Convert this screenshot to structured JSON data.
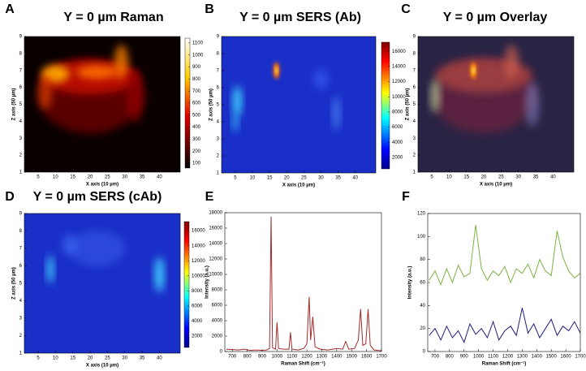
{
  "chart_data": [
    {
      "type": "heatmap",
      "panel": "A",
      "title": "Y = 0 µm Raman",
      "xlabel": "X axis (10 µm)",
      "ylabel": "Z axis (50 µm)",
      "xlim": [
        1,
        46
      ],
      "ylim": [
        1,
        9
      ],
      "xticks": [
        5,
        10,
        15,
        20,
        25,
        30,
        35,
        40
      ],
      "yticks": [
        1,
        2,
        3,
        4,
        5,
        6,
        7,
        8,
        9
      ],
      "colormap": "hot",
      "clim": [
        60,
        1140
      ],
      "cbar_ticks": [
        100,
        200,
        300,
        400,
        500,
        600,
        700,
        800,
        900,
        1000,
        1100
      ]
    },
    {
      "type": "heatmap",
      "panel": "B",
      "title": "Y = 0 µm SERS (Ab)",
      "xlabel": "X axis (10 µm)",
      "ylabel": "Z axis (50 µm)",
      "xlim": [
        1,
        46
      ],
      "ylim": [
        1,
        9
      ],
      "xticks": [
        5,
        10,
        15,
        20,
        25,
        30,
        35,
        40
      ],
      "yticks": [
        1,
        2,
        3,
        4,
        5,
        6,
        7,
        8,
        9
      ],
      "colormap": "jet",
      "clim": [
        500,
        17200
      ],
      "cbar_ticks": [
        2000,
        4000,
        6000,
        8000,
        10000,
        12000,
        14000,
        16000
      ]
    },
    {
      "type": "heatmap",
      "panel": "C",
      "title": "Y = 0 µm Overlay",
      "xlabel": "X axis (10 µm)",
      "ylabel": "Z axis (50 µm)",
      "xlim": [
        1,
        46
      ],
      "ylim": [
        1,
        9
      ],
      "xticks": [
        5,
        10,
        15,
        20,
        25,
        30,
        35,
        40
      ],
      "yticks": [
        1,
        2,
        3,
        4,
        5,
        6,
        7,
        8,
        9
      ],
      "colormap": "overlay"
    },
    {
      "type": "heatmap",
      "panel": "D",
      "title": "Y = 0 µm SERS (cAb)",
      "xlabel": "X axis (10 µm)",
      "ylabel": "Z axis (50 µm)",
      "xlim": [
        1,
        46
      ],
      "ylim": [
        1,
        9
      ],
      "xticks": [
        5,
        10,
        15,
        20,
        25,
        30,
        35,
        40
      ],
      "yticks": [
        1,
        2,
        3,
        4,
        5,
        6,
        7,
        8,
        9
      ],
      "colormap": "jet",
      "clim": [
        500,
        17200
      ],
      "cbar_ticks": [
        2000,
        4000,
        6000,
        8000,
        10000,
        12000,
        14000,
        16000
      ]
    },
    {
      "type": "line",
      "panel": "E",
      "xlabel": "Raman Shift (cm⁻¹)",
      "ylabel": "Intensity (a.u.)",
      "xlim": [
        650,
        1700
      ],
      "ylim": [
        0,
        18000
      ],
      "xticks": [
        700,
        800,
        900,
        1000,
        1100,
        1200,
        1300,
        1400,
        1500,
        1600,
        1700
      ],
      "yticks": [
        0,
        2000,
        4000,
        6000,
        8000,
        10000,
        12000,
        14000,
        16000,
        18000
      ],
      "x": [
        660,
        700,
        740,
        780,
        820,
        860,
        900,
        930,
        950,
        960,
        970,
        990,
        1000,
        1010,
        1040,
        1080,
        1090,
        1100,
        1140,
        1180,
        1200,
        1215,
        1225,
        1240,
        1255,
        1290,
        1340,
        1400,
        1440,
        1460,
        1480,
        1520,
        1545,
        1560,
        1575,
        1595,
        1610,
        1625,
        1650,
        1700
      ],
      "series": [
        {
          "color": "#a52a2a",
          "values": [
            300,
            250,
            200,
            300,
            150,
            200,
            150,
            200,
            400,
            17500,
            500,
            300,
            3800,
            400,
            300,
            300,
            2500,
            300,
            200,
            400,
            1000,
            7100,
            1500,
            4500,
            600,
            300,
            200,
            400,
            300,
            1300,
            300,
            400,
            1500,
            5500,
            800,
            1000,
            5500,
            800,
            200,
            100
          ]
        }
      ]
    },
    {
      "type": "line",
      "panel": "F",
      "xlabel": "Raman Shift (cm⁻¹)",
      "ylabel": "Intensity (a.u.)",
      "xlim": [
        650,
        1700
      ],
      "ylim": [
        0,
        120
      ],
      "xticks": [
        700,
        800,
        900,
        1000,
        1100,
        1200,
        1300,
        1400,
        1500,
        1600,
        1700
      ],
      "yticks": [
        0,
        20,
        40,
        60,
        80,
        100,
        120
      ],
      "x": [
        660,
        700,
        740,
        780,
        820,
        860,
        900,
        940,
        980,
        1020,
        1060,
        1100,
        1140,
        1180,
        1220,
        1260,
        1300,
        1340,
        1380,
        1420,
        1460,
        1500,
        1540,
        1580,
        1620,
        1660,
        1700
      ],
      "series": [
        {
          "color": "#7cb342",
          "values": [
            62,
            70,
            58,
            72,
            60,
            75,
            65,
            68,
            110,
            72,
            62,
            70,
            66,
            74,
            60,
            72,
            68,
            76,
            64,
            80,
            70,
            66,
            105,
            82,
            70,
            64,
            68
          ]
        },
        {
          "color": "#1f1f7a",
          "values": [
            14,
            20,
            10,
            22,
            12,
            18,
            8,
            24,
            15,
            20,
            12,
            26,
            10,
            18,
            22,
            14,
            38,
            16,
            24,
            12,
            20,
            28,
            14,
            22,
            18,
            26,
            16
          ]
        }
      ]
    }
  ]
}
